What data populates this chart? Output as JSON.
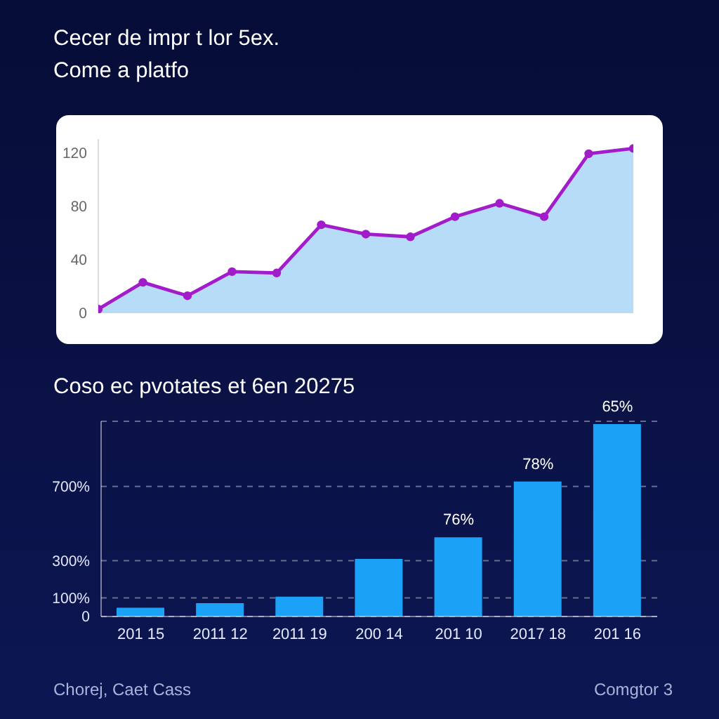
{
  "chart_data": [
    {
      "type": "area",
      "title": "Cecer de impr t lor 5ex.",
      "subtitle": "Come a platfo",
      "categories": [
        null,
        null,
        null,
        null,
        null,
        null,
        null,
        null,
        null,
        null,
        null,
        null,
        null
      ],
      "series": [
        {
          "color": "#b7dcf8",
          "values": [
            3,
            23,
            13,
            31,
            30,
            66,
            59,
            57,
            72,
            82,
            72,
            119,
            123
          ]
        },
        {
          "type": "line",
          "color": "#a21ccb",
          "marker": "circle",
          "values": [
            3,
            23,
            13,
            31,
            30,
            66,
            59,
            57,
            72,
            82,
            72,
            119,
            123
          ]
        }
      ],
      "ylim": [
        0,
        130
      ],
      "yticks": [
        0,
        40,
        80,
        120
      ],
      "tick_labels": "y"
    },
    {
      "type": "bar",
      "title": "Coso ec pvotates et 6en 20275",
      "categories": [
        "201 15",
        "2011 12",
        "2011 19",
        "200 14",
        "201 10",
        "2017 18",
        "201 16"
      ],
      "values": [
        47,
        72,
        107,
        310,
        426,
        726,
        1035
      ],
      "color": "#1ba2f6",
      "ylim": [
        0,
        1050
      ],
      "yticks": [
        0,
        {
          "value": 100,
          "label": "100%"
        },
        {
          "value": 300,
          "label": "300%"
        },
        {
          "value": 700,
          "label": "700%"
        }
      ],
      "grid": "y",
      "annotations": [
        {
          "text": "76%",
          "x": "201 10",
          "y": 426
        },
        {
          "text": "78%",
          "x": "2017 18",
          "y": 726
        },
        {
          "text": "65%",
          "x": "201 16",
          "y": 1035
        },
        "Chorej, Caet Cass",
        "Comgtor 3"
      ]
    }
  ]
}
